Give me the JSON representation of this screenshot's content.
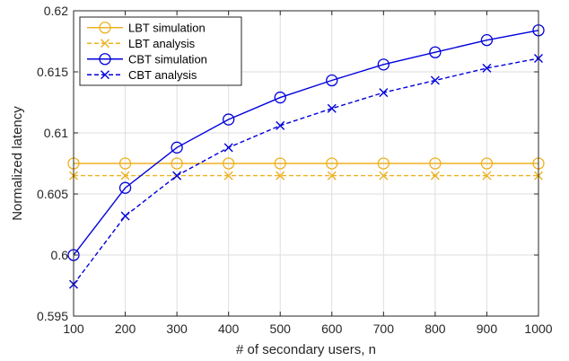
{
  "chart_data": {
    "type": "line",
    "title": "",
    "xlabel": "# of secondary users, n",
    "ylabel": "Normalized latency",
    "xlim": [
      100,
      1000
    ],
    "ylim": [
      0.595,
      0.62
    ],
    "xticks": [
      100,
      200,
      300,
      400,
      500,
      600,
      700,
      800,
      900,
      1000
    ],
    "yticks": [
      0.595,
      0.6,
      0.605,
      0.61,
      0.615,
      0.62
    ],
    "ytick_labels": [
      "0.595",
      "0.6",
      "0.605",
      "0.61",
      "0.615",
      "0.62"
    ],
    "grid": true,
    "legend_position": "top-left",
    "x": [
      100,
      200,
      300,
      400,
      500,
      600,
      700,
      800,
      900,
      1000
    ],
    "series": [
      {
        "name": "LBT simulation",
        "color": "#EDB120",
        "line": "solid",
        "marker": "circle",
        "values": [
          0.6075,
          0.6075,
          0.6075,
          0.6075,
          0.6075,
          0.6075,
          0.6075,
          0.6075,
          0.6075,
          0.6075
        ]
      },
      {
        "name": "LBT analysis",
        "color": "#EDB120",
        "line": "dashed",
        "marker": "x",
        "values": [
          0.6065,
          0.6065,
          0.6065,
          0.6065,
          0.6065,
          0.6065,
          0.6065,
          0.6065,
          0.6065,
          0.6065
        ]
      },
      {
        "name": "CBT simulation",
        "color": "#0000DD",
        "line": "solid",
        "marker": "circle",
        "values": [
          0.6,
          0.6055,
          0.6088,
          0.6111,
          0.6129,
          0.6143,
          0.6156,
          0.6166,
          0.6176,
          0.6184
        ]
      },
      {
        "name": "CBT analysis",
        "color": "#0000DD",
        "line": "dashed",
        "marker": "x",
        "values": [
          0.5976,
          0.6032,
          0.6065,
          0.6088,
          0.6106,
          0.612,
          0.6133,
          0.6143,
          0.6153,
          0.6161
        ]
      }
    ]
  }
}
